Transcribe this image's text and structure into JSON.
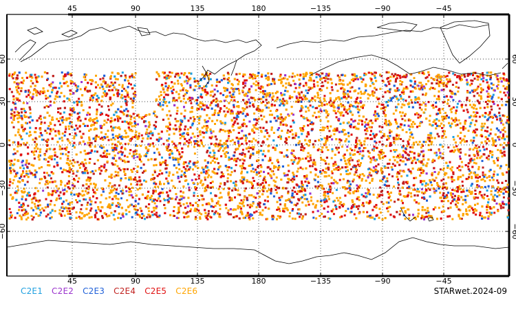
{
  "map": {
    "projection": "equirectangular, Pacific-centred",
    "lon_ticks_top": [
      "45",
      "90",
      "135",
      "180",
      "−135",
      "−90",
      "−45"
    ],
    "lon_ticks_bottom": [
      "45",
      "90",
      "135",
      "180",
      "−135",
      "−90",
      "−45"
    ],
    "lat_ticks": [
      "60",
      "30",
      "0",
      "−30",
      "−60"
    ],
    "lat_coverage": [
      -52,
      52
    ],
    "gridlines": "dotted",
    "point_colors": {
      "C2E1": "#1fa0e0",
      "C2E2": "#9a32cd",
      "C2E3": "#1e5fd8",
      "C2E4": "#c0201e",
      "C2E5": "#e01010",
      "C2E6": "#ffa500"
    }
  },
  "legend": [
    {
      "label": "C2E1",
      "color": "#1fa0e0"
    },
    {
      "label": "C2E2",
      "color": "#9a32cd"
    },
    {
      "label": "C2E3",
      "color": "#1e5fd8"
    },
    {
      "label": "C2E4",
      "color": "#c0201e"
    },
    {
      "label": "C2E5",
      "color": "#e01010"
    },
    {
      "label": "C2E6",
      "color": "#ffa500"
    }
  ],
  "stamp": "STARwet.2024-09"
}
